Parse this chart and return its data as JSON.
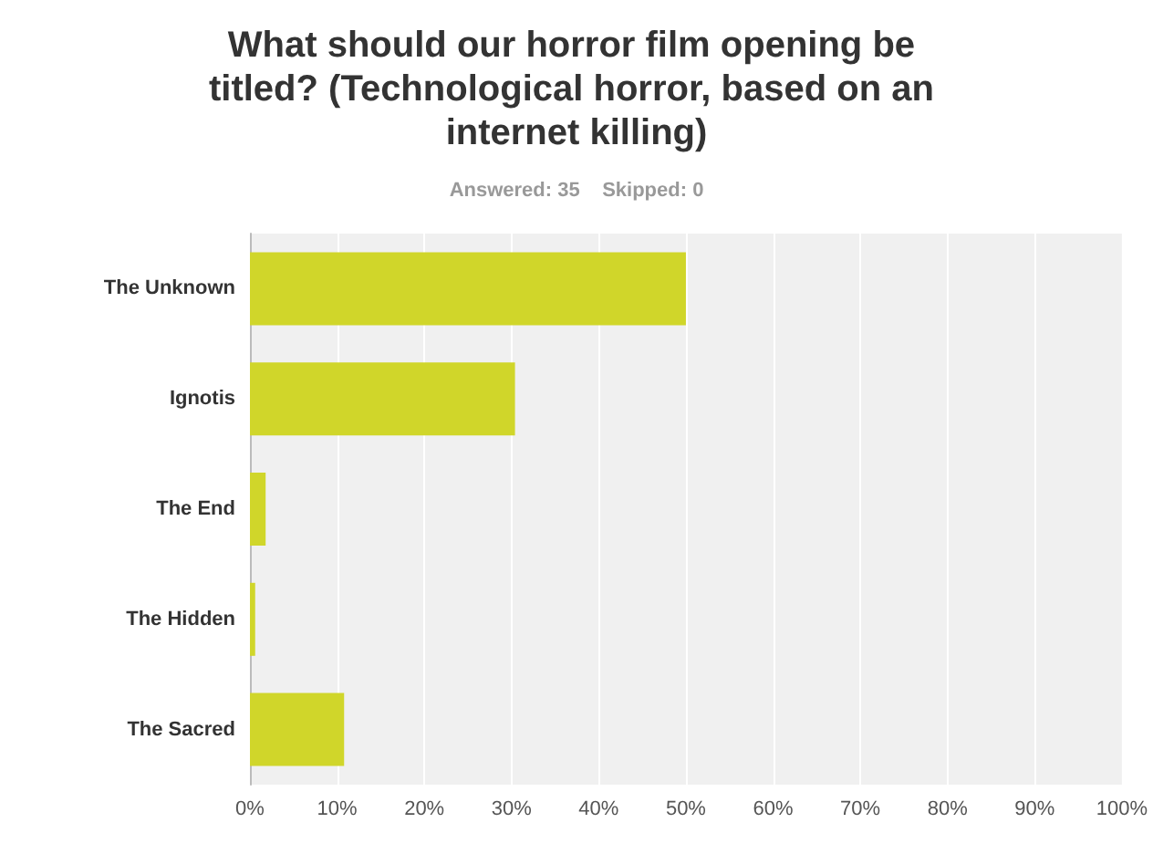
{
  "chart_data": {
    "type": "bar",
    "orientation": "horizontal",
    "title": "What should our horror film opening be titled? (Technological horror, based on an internet killing)",
    "subtitle": "Answered: 35    Skipped: 0",
    "categories": [
      "The Unknown",
      "Ignotis",
      "The End",
      "The Hidden",
      "The Sacred"
    ],
    "values": [
      50,
      30.4,
      1.8,
      0.6,
      10.8
    ],
    "color": "#d0d62a",
    "xlim": [
      0,
      100
    ],
    "xticks": [
      {
        "value": 0,
        "label": "0%"
      },
      {
        "value": 10,
        "label": "10%"
      },
      {
        "value": 20,
        "label": "20%"
      },
      {
        "value": 30,
        "label": "30%"
      },
      {
        "value": 40,
        "label": "40%"
      },
      {
        "value": 50,
        "label": "50%"
      },
      {
        "value": 60,
        "label": "60%"
      },
      {
        "value": 70,
        "label": "70%"
      },
      {
        "value": 80,
        "label": "80%"
      },
      {
        "value": 90,
        "label": "90%"
      },
      {
        "value": 100,
        "label": "100%"
      }
    ],
    "grid": "x"
  }
}
